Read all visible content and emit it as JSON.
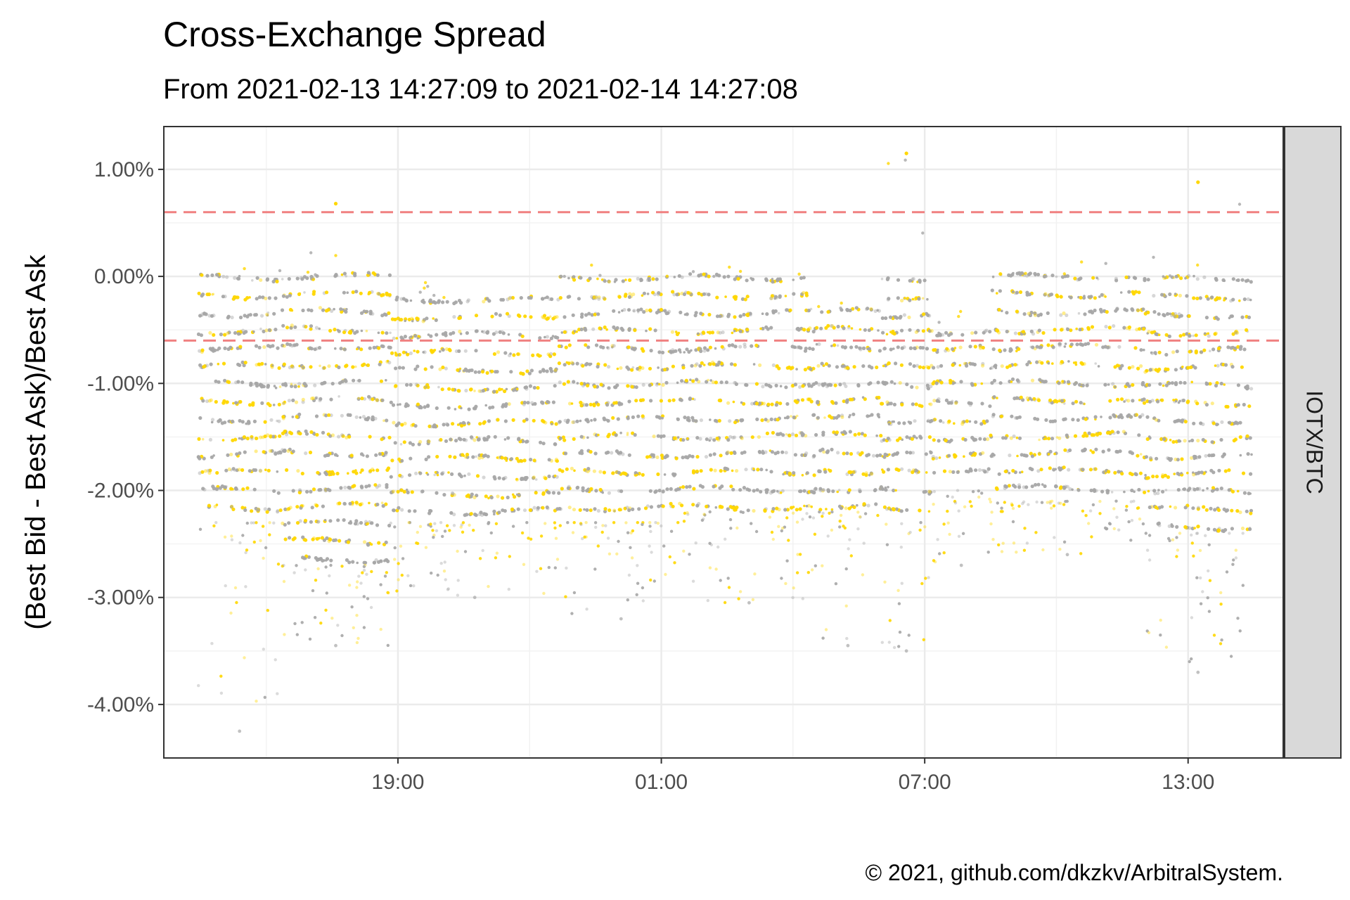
{
  "chart_data": {
    "type": "scatter",
    "title": "Cross-Exchange Spread",
    "subtitle": "From 2021-02-13 14:27:09 to 2021-02-14 14:27:08",
    "ylabel": "(Best Bid - Best Ask)/Best Ask",
    "xlabel": "",
    "facet_label": "IOTX/BTC",
    "caption": "© 2021, github.com/dkzkv/ArbitralSystem.",
    "x_start": "2021-02-13 14:27:09",
    "x_end": "2021-02-14 14:27:08",
    "xlim": [
      "2021-02-13 13:40",
      "2021-02-14 15:10"
    ],
    "x_ticks": [
      {
        "label": "19:00",
        "time": "2021-02-13 19:00"
      },
      {
        "label": "01:00",
        "time": "2021-02-14 01:00"
      },
      {
        "label": "07:00",
        "time": "2021-02-14 07:00"
      },
      {
        "label": "13:00",
        "time": "2021-02-14 13:00"
      }
    ],
    "y_ticks": [
      {
        "label": "1.00%",
        "value": 1.0
      },
      {
        "label": "0.00%",
        "value": 0.0
      },
      {
        "label": "-1.00%",
        "value": -1.0
      },
      {
        "label": "-2.00%",
        "value": -2.0
      },
      {
        "label": "-3.00%",
        "value": -3.0
      },
      {
        "label": "-4.00%",
        "value": -4.0
      }
    ],
    "ylim": [
      -4.5,
      1.4
    ],
    "threshold_lines": [
      0.6,
      -0.6
    ],
    "threshold_color": "#f08080",
    "series_colors": [
      "#a6a6a6",
      "#ffd700"
    ],
    "grid": true,
    "legend": "none",
    "segments": [
      {
        "start": "2021-02-13 14:27",
        "end": "2021-02-13 16:20",
        "top": 0.0,
        "bottom": -2.3,
        "outlier_low": -4.25
      },
      {
        "start": "2021-02-13 16:20",
        "end": "2021-02-13 18:50",
        "top": 0.0,
        "bottom": -2.7,
        "outlier_low": -3.45,
        "outlier_high": 0.68
      },
      {
        "start": "2021-02-13 18:50",
        "end": "2021-02-13 22:40",
        "top": -0.2,
        "bottom": -2.3,
        "outlier_low": -3.0
      },
      {
        "start": "2021-02-13 22:40",
        "end": "2021-02-14 01:30",
        "top": 0.0,
        "bottom": -2.3,
        "outlier_low": -3.2
      },
      {
        "start": "2021-02-14 01:30",
        "end": "2021-02-14 04:30",
        "top": 0.0,
        "bottom": -2.2,
        "outlier_low": -3.05
      },
      {
        "start": "2021-02-14 04:30",
        "end": "2021-02-14 06:00",
        "top": -0.3,
        "bottom": -2.2,
        "outlier_low": -3.45
      },
      {
        "start": "2021-02-14 06:00",
        "end": "2021-02-14 07:10",
        "top": 0.0,
        "bottom": -2.3,
        "outlier_low": -3.5,
        "outlier_high": 1.15
      },
      {
        "start": "2021-02-14 07:10",
        "end": "2021-02-14 08:30",
        "top": -0.5,
        "bottom": -2.0,
        "outlier_low": -2.7
      },
      {
        "start": "2021-02-14 08:30",
        "end": "2021-02-14 12:00",
        "top": 0.0,
        "bottom": -2.1,
        "outlier_low": -2.6
      },
      {
        "start": "2021-02-14 12:00",
        "end": "2021-02-14 14:27",
        "top": 0.0,
        "bottom": -2.4,
        "outlier_low": -3.7,
        "outlier_high": 0.88
      }
    ]
  }
}
